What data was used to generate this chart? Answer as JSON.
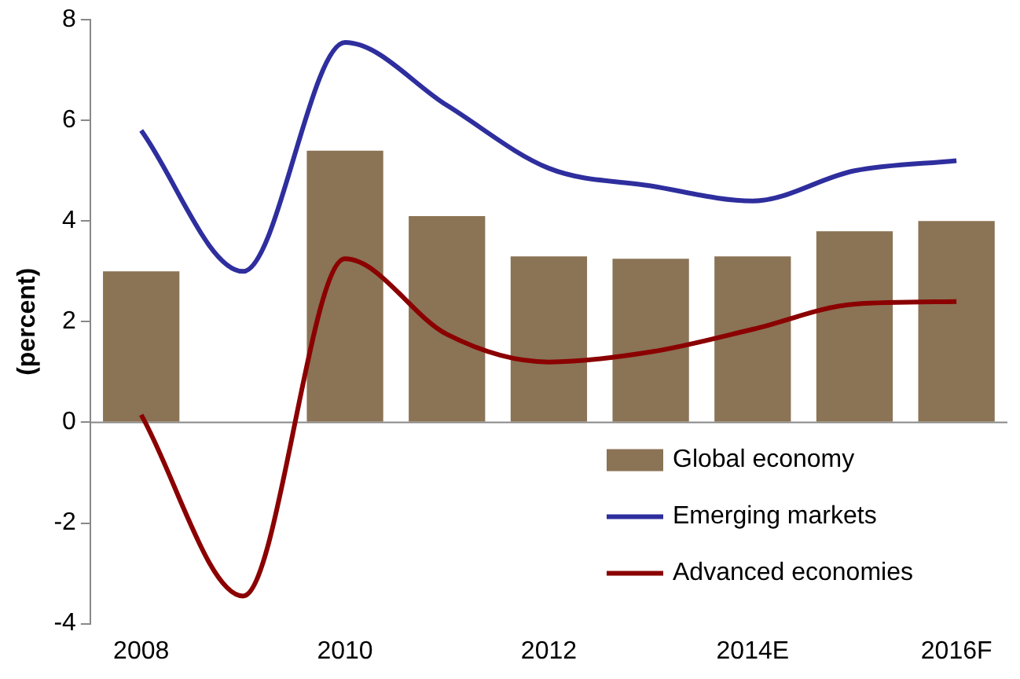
{
  "chart_data": {
    "type": "bar",
    "ylabel": "(percent)",
    "categories": [
      "2008",
      null,
      "2010",
      null,
      "2012",
      null,
      "2014E",
      null,
      "2016F"
    ],
    "series": [
      {
        "name": "Global economy",
        "color": "#8b7355",
        "values": [
          3.0,
          null,
          5.4,
          4.1,
          3.3,
          3.25,
          3.3,
          3.8,
          4.0
        ]
      },
      {
        "name": "Emerging markets",
        "type": "line",
        "color": "#2e2e9e",
        "values": [
          5.8,
          3.0,
          7.55,
          6.3,
          5.05,
          4.7,
          4.4,
          5.0,
          5.2
        ]
      },
      {
        "name": "Advanced economies",
        "type": "line",
        "color": "#8b0000",
        "values": [
          0.15,
          -3.45,
          3.25,
          1.75,
          1.2,
          1.4,
          1.85,
          2.35,
          2.4
        ]
      }
    ],
    "ylim": [
      -4,
      8
    ],
    "yticks": [
      -4,
      -2,
      0,
      2,
      4,
      6,
      8
    ],
    "ref_lines": [
      {
        "axis": "y",
        "value": 0,
        "color": "#888888"
      }
    ],
    "grid": false,
    "legend": "bottom right",
    "marker": "none",
    "line_style": "solid"
  }
}
